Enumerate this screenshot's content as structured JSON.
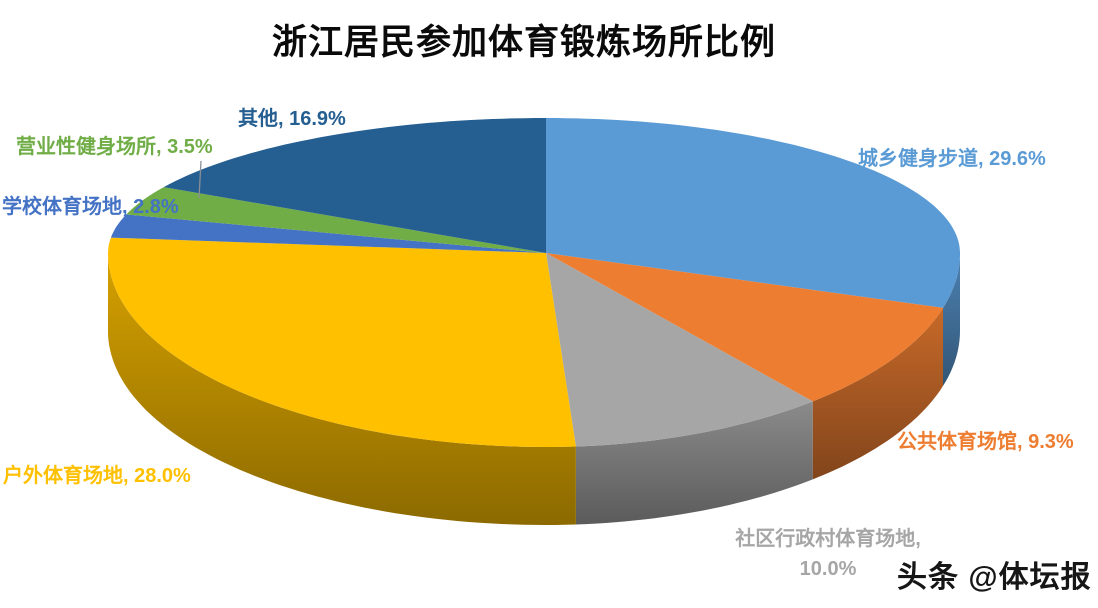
{
  "title": "浙江居民参加体育锻炼场所比例",
  "watermark": "头条 @体坛报",
  "chart_data": {
    "type": "pie",
    "style": "3d",
    "title": "浙江居民参加体育锻炼场所比例",
    "unit": "%",
    "start_angle_deg": 0,
    "direction": "clockwise",
    "legend_position": "none",
    "labels_on": "outside, colored to match slice",
    "series": [
      {
        "name": "城乡健身步道",
        "value": 29.6,
        "display": "29.6",
        "color": "#5B9BD5"
      },
      {
        "name": "公共体育场馆",
        "value": 9.3,
        "display": "9.3",
        "color": "#ED7D31"
      },
      {
        "name": "社区行政村体育场地",
        "value": 10.0,
        "display": "10.0",
        "color": "#A6A6A6"
      },
      {
        "name": "户外体育场地",
        "value": 28.0,
        "display": "28.0",
        "color": "#FFC000"
      },
      {
        "name": "学校体育场地",
        "value": 2.8,
        "display": "2.8",
        "color": "#4472C4"
      },
      {
        "name": "营业性健身场所",
        "value": 3.5,
        "display": "3.5",
        "color": "#70AD47"
      },
      {
        "name": "其他",
        "value": 16.9,
        "display": "16.9",
        "color": "#255E91"
      }
    ]
  }
}
